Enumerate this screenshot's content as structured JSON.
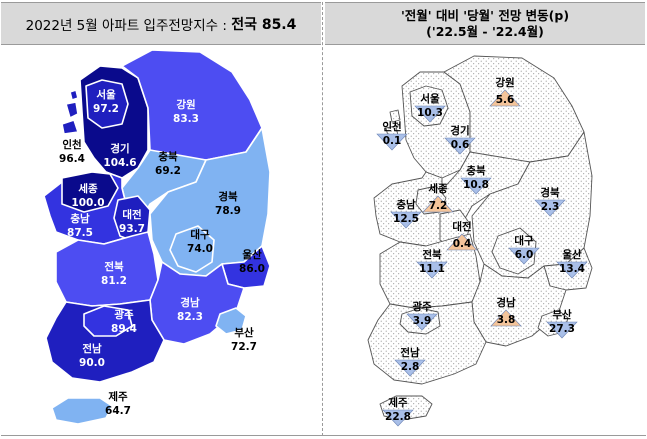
{
  "left_panel": {
    "title_prefix": "2022년 5월 아파트 입주전망지수 : ",
    "title_total": "전국 85.4",
    "regions": [
      {
        "key": "seoul",
        "name": "서울",
        "value": "97.2",
        "color": "#1f1fbf"
      },
      {
        "key": "gangwon",
        "name": "강원",
        "value": "83.3",
        "color": "#4d4df2"
      },
      {
        "key": "incheon",
        "name": "인천",
        "value": "96.4",
        "color": "#1f1fbf"
      },
      {
        "key": "gyeonggi",
        "name": "경기",
        "value": "104.6",
        "color": "#0a0a8c"
      },
      {
        "key": "chungbuk",
        "name": "충북",
        "value": "69.2",
        "color": "#80b3f2"
      },
      {
        "key": "sejong",
        "name": "세종",
        "value": "100.0",
        "color": "#0a0a8c"
      },
      {
        "key": "daejeon",
        "name": "대전",
        "value": "93.7",
        "color": "#1f1fbf"
      },
      {
        "key": "gyeongbuk",
        "name": "경북",
        "value": "78.9",
        "color": "#80b3f2"
      },
      {
        "key": "chungnam",
        "name": "충남",
        "value": "87.5",
        "color": "#3333e0"
      },
      {
        "key": "daegu",
        "name": "대구",
        "value": "74.0",
        "color": "#80b3f2"
      },
      {
        "key": "ulsan",
        "name": "울산",
        "value": "86.0",
        "color": "#3333e0"
      },
      {
        "key": "jeonbuk",
        "name": "전북",
        "value": "81.2",
        "color": "#4d4df2"
      },
      {
        "key": "gyeongnam",
        "name": "경남",
        "value": "82.3",
        "color": "#4d4df2"
      },
      {
        "key": "gwangju",
        "name": "광주",
        "value": "89.4",
        "color": "#3333e0"
      },
      {
        "key": "busan",
        "name": "부산",
        "value": "72.7",
        "color": "#80b3f2"
      },
      {
        "key": "jeonnam",
        "name": "전남",
        "value": "90.0",
        "color": "#1f1fbf"
      },
      {
        "key": "jeju",
        "name": "제주",
        "value": "64.7",
        "color": "#80b3f2"
      }
    ]
  },
  "right_panel": {
    "title_line1": "'전월' 대비 '당월' 전망 변동(p)",
    "title_line2": "('22.5월  -  '22.4월)",
    "up_color": "#f4c49a",
    "down_color": "#a9bfe8",
    "regions": [
      {
        "key": "gangwon",
        "name": "강원",
        "change": "5.6",
        "direction": "up"
      },
      {
        "key": "seoul",
        "name": "서울",
        "change": "10.3",
        "direction": "down"
      },
      {
        "key": "incheon",
        "name": "인천",
        "change": "0.1",
        "direction": "down"
      },
      {
        "key": "gyeonggi",
        "name": "경기",
        "change": "0.6",
        "direction": "down"
      },
      {
        "key": "chungbuk",
        "name": "충북",
        "change": "10.8",
        "direction": "down"
      },
      {
        "key": "sejong",
        "name": "세종",
        "change": "7.2",
        "direction": "up"
      },
      {
        "key": "chungnam",
        "name": "충남",
        "change": "12.5",
        "direction": "down"
      },
      {
        "key": "gyeongbuk",
        "name": "경북",
        "change": "2.3",
        "direction": "down"
      },
      {
        "key": "daejeon",
        "name": "대전",
        "change": "0.4",
        "direction": "up"
      },
      {
        "key": "daegu",
        "name": "대구",
        "change": "6.0",
        "direction": "down"
      },
      {
        "key": "ulsan",
        "name": "울산",
        "change": "13.4",
        "direction": "down"
      },
      {
        "key": "jeonbuk",
        "name": "전북",
        "change": "11.1",
        "direction": "down"
      },
      {
        "key": "gwangju",
        "name": "광주",
        "change": "3.9",
        "direction": "down"
      },
      {
        "key": "gyeongnam",
        "name": "경남",
        "change": "3.8",
        "direction": "up"
      },
      {
        "key": "busan",
        "name": "부산",
        "change": "27.3",
        "direction": "down"
      },
      {
        "key": "jeonnam",
        "name": "전남",
        "change": "2.8",
        "direction": "down"
      },
      {
        "key": "jeju",
        "name": "제주",
        "change": "22.8",
        "direction": "down"
      }
    ]
  }
}
